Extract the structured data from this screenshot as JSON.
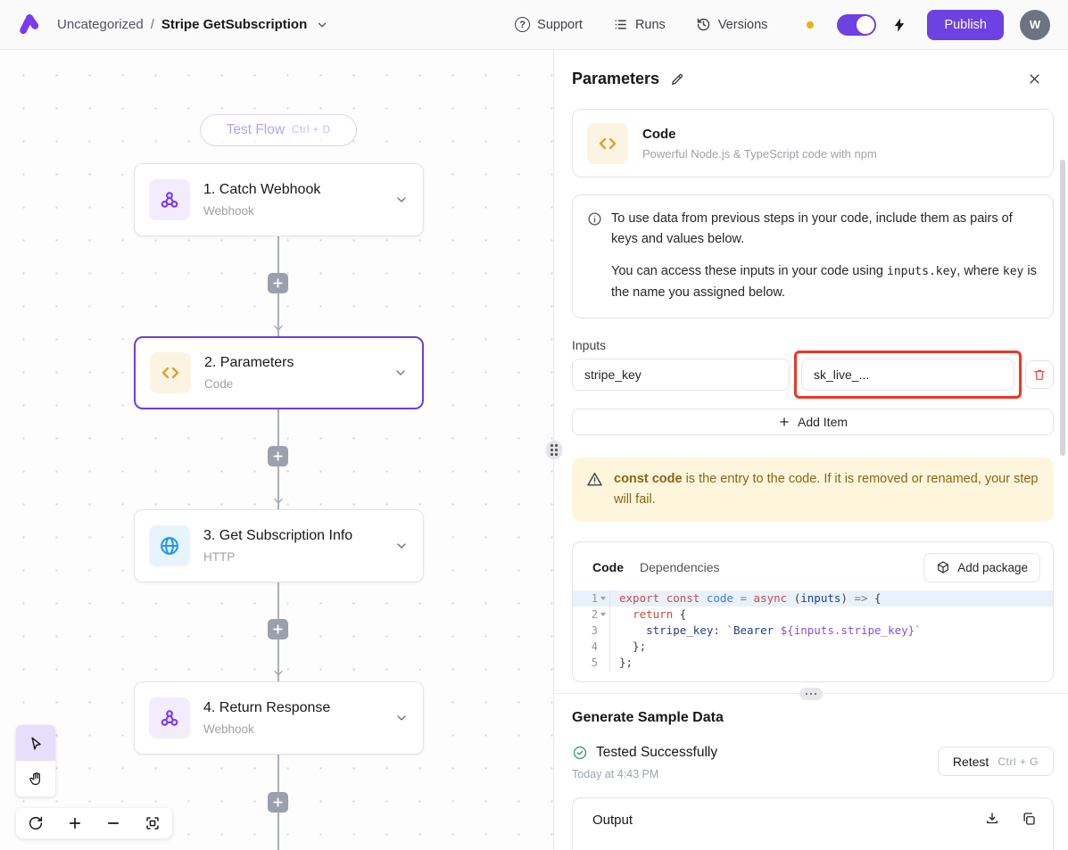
{
  "header": {
    "breadcrumb_category": "Uncategorized",
    "breadcrumb_separator": "/",
    "flow_title": "Stripe GetSubscription",
    "support_label": "Support",
    "runs_label": "Runs",
    "versions_label": "Versions",
    "publish_label": "Publish",
    "avatar_initial": "W",
    "toggle_on": true,
    "accent_color": "#6e41e2",
    "status_dot_color": "#f0ae13"
  },
  "canvas": {
    "test_flow_label": "Test Flow",
    "test_flow_shortcut": "Ctrl + D",
    "steps": [
      {
        "title": "1. Catch Webhook",
        "subtitle": "Webhook",
        "icon": "webhook-icon"
      },
      {
        "title": "2. Parameters",
        "subtitle": "Code",
        "icon": "code-icon",
        "selected": true
      },
      {
        "title": "3. Get Subscription Info",
        "subtitle": "HTTP",
        "icon": "globe-icon"
      },
      {
        "title": "4. Return Response",
        "subtitle": "Webhook",
        "icon": "webhook-icon"
      }
    ]
  },
  "panel": {
    "title": "Parameters",
    "step_card": {
      "name": "Code",
      "description": "Powerful Node.js & TypeScript code with npm"
    },
    "info_note": {
      "p1": "To use data from previous steps in your code, include them as pairs of keys and values below.",
      "p2_pre": "You can access these inputs in your code using ",
      "p2_code1": "inputs.key",
      "p2_mid": ", where ",
      "p2_code2": "key",
      "p2_post": " is the name you assigned below."
    },
    "inputs": {
      "label": "Inputs",
      "rows": [
        {
          "key": "stripe_key",
          "value": "sk_live_...",
          "annotated": true
        }
      ],
      "add_item_label": "Add Item"
    },
    "warning": {
      "bold": "const code",
      "rest": " is the entry to the code. If it is removed or renamed, your step will fail."
    },
    "code_editor": {
      "tabs": {
        "code": "Code",
        "dependencies": "Dependencies"
      },
      "active_tab": "Code",
      "add_package_label": "Add package",
      "lines": [
        {
          "n": "1",
          "fold": true,
          "hl": true,
          "tokens": [
            [
              "kw",
              "export"
            ],
            [
              "pl",
              " "
            ],
            [
              "kw",
              "const"
            ],
            [
              "pl",
              " "
            ],
            [
              "def",
              "code"
            ],
            [
              "op",
              " = "
            ],
            [
              "kw",
              "async"
            ],
            [
              "pl",
              " ("
            ],
            [
              "var",
              "inputs"
            ],
            [
              "pl",
              ") "
            ],
            [
              "op",
              "=>"
            ],
            [
              "pl",
              " {"
            ]
          ]
        },
        {
          "n": "2",
          "fold": true,
          "tokens": [
            [
              "pl",
              "  "
            ],
            [
              "kw",
              "return"
            ],
            [
              "pl",
              " {"
            ]
          ]
        },
        {
          "n": "3",
          "tokens": [
            [
              "pl",
              "    "
            ],
            [
              "var",
              "stripe_key"
            ],
            [
              "pl",
              ": "
            ],
            [
              "op",
              "`"
            ],
            [
              "str",
              "Bearer "
            ],
            [
              "interp",
              "${inputs.stripe_key}"
            ],
            [
              "op",
              "`"
            ]
          ]
        },
        {
          "n": "4",
          "tokens": [
            [
              "pl",
              "  };"
            ]
          ]
        },
        {
          "n": "5",
          "tokens": [
            [
              "pl",
              "};"
            ]
          ]
        }
      ]
    },
    "sample": {
      "heading": "Generate Sample Data",
      "status": "Tested Successfully",
      "timestamp": "Today at 4:43 PM",
      "retest_label": "Retest",
      "retest_shortcut": "Ctrl + G",
      "output_label": "Output"
    },
    "annotation_color": "#ee3524",
    "success_color": "#2f9e63"
  }
}
